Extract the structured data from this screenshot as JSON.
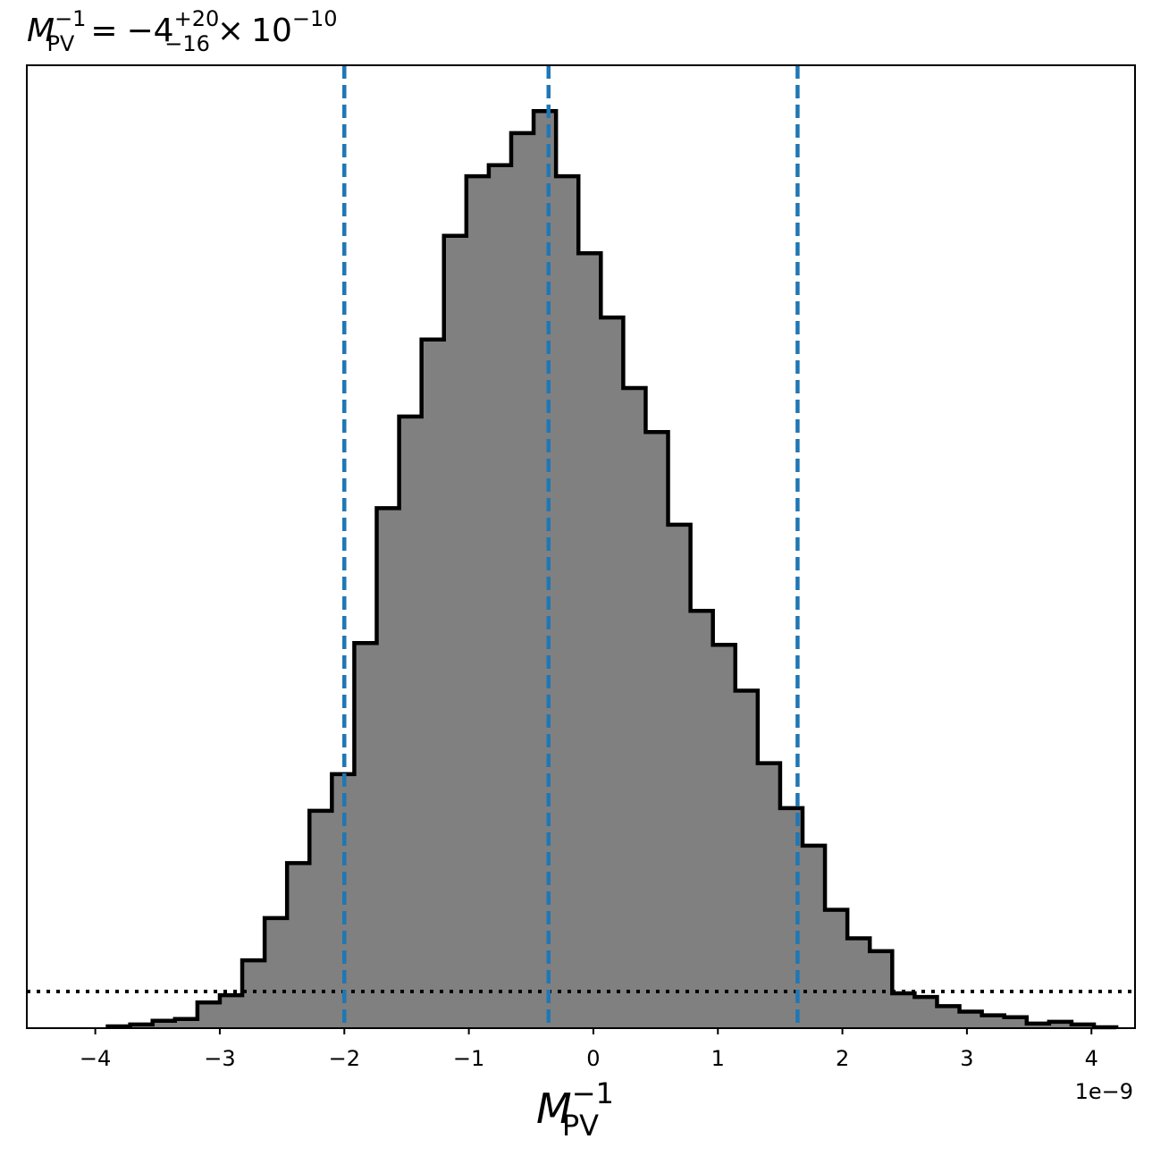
{
  "chart_data": {
    "type": "histogram",
    "title": {
      "symbol": "M",
      "subscript": "PV",
      "superscript": "−1",
      "equals": "=",
      "value": "−4",
      "upper_error": "+20",
      "lower_error": "−16",
      "times": "×",
      "scale_base": "10",
      "scale_exponent": "−10"
    },
    "xlabel": {
      "symbol": "M",
      "subscript": "PV",
      "superscript": "−1"
    },
    "ylabel": "",
    "axis_offset_label": "1e−9",
    "x_scale_exponent": -9,
    "xlim": [
      -4.55,
      4.35
    ],
    "ylim": [
      0,
      1.05
    ],
    "y_ticks_visible": false,
    "grid": false,
    "x_ticks": [
      {
        "value": -4,
        "label": "−4"
      },
      {
        "value": -3,
        "label": "−3"
      },
      {
        "value": -2,
        "label": "−2"
      },
      {
        "value": -1,
        "label": "−1"
      },
      {
        "value": 0,
        "label": "0"
      },
      {
        "value": 1,
        "label": "1"
      },
      {
        "value": 2,
        "label": "2"
      },
      {
        "value": 3,
        "label": "3"
      },
      {
        "value": 4,
        "label": "4"
      }
    ],
    "bins": [
      {
        "x0": -3.9,
        "x1": -3.72,
        "value": 0.002
      },
      {
        "x0": -3.72,
        "x1": -3.54,
        "value": 0.004
      },
      {
        "x0": -3.54,
        "x1": -3.36,
        "value": 0.008
      },
      {
        "x0": -3.36,
        "x1": -3.18,
        "value": 0.01
      },
      {
        "x0": -3.18,
        "x1": -3.0,
        "value": 0.028
      },
      {
        "x0": -3.0,
        "x1": -2.82,
        "value": 0.036
      },
      {
        "x0": -2.82,
        "x1": -2.64,
        "value": 0.074
      },
      {
        "x0": -2.64,
        "x1": -2.46,
        "value": 0.12
      },
      {
        "x0": -2.46,
        "x1": -2.28,
        "value": 0.18
      },
      {
        "x0": -2.28,
        "x1": -2.1,
        "value": 0.237
      },
      {
        "x0": -2.1,
        "x1": -1.92,
        "value": 0.277
      },
      {
        "x0": -1.92,
        "x1": -1.74,
        "value": 0.42
      },
      {
        "x0": -1.74,
        "x1": -1.56,
        "value": 0.567
      },
      {
        "x0": -1.56,
        "x1": -1.38,
        "value": 0.667
      },
      {
        "x0": -1.38,
        "x1": -1.2,
        "value": 0.751
      },
      {
        "x0": -1.2,
        "x1": -1.02,
        "value": 0.864
      },
      {
        "x0": -1.02,
        "x1": -0.84,
        "value": 0.929
      },
      {
        "x0": -0.84,
        "x1": -0.66,
        "value": 0.941
      },
      {
        "x0": -0.66,
        "x1": -0.48,
        "value": 0.976
      },
      {
        "x0": -0.48,
        "x1": -0.3,
        "value": 1.0
      },
      {
        "x0": -0.3,
        "x1": -0.12,
        "value": 0.929
      },
      {
        "x0": -0.12,
        "x1": 0.06,
        "value": 0.845
      },
      {
        "x0": 0.06,
        "x1": 0.24,
        "value": 0.775
      },
      {
        "x0": 0.24,
        "x1": 0.42,
        "value": 0.698
      },
      {
        "x0": 0.42,
        "x1": 0.6,
        "value": 0.65
      },
      {
        "x0": 0.6,
        "x1": 0.78,
        "value": 0.549
      },
      {
        "x0": 0.78,
        "x1": 0.96,
        "value": 0.455
      },
      {
        "x0": 0.96,
        "x1": 1.14,
        "value": 0.418
      },
      {
        "x0": 1.14,
        "x1": 1.32,
        "value": 0.368
      },
      {
        "x0": 1.32,
        "x1": 1.5,
        "value": 0.289
      },
      {
        "x0": 1.5,
        "x1": 1.68,
        "value": 0.24
      },
      {
        "x0": 1.68,
        "x1": 1.86,
        "value": 0.199
      },
      {
        "x0": 1.86,
        "x1": 2.04,
        "value": 0.129
      },
      {
        "x0": 2.04,
        "x1": 2.22,
        "value": 0.098
      },
      {
        "x0": 2.22,
        "x1": 2.4,
        "value": 0.084
      },
      {
        "x0": 2.4,
        "x1": 2.58,
        "value": 0.038
      },
      {
        "x0": 2.58,
        "x1": 2.76,
        "value": 0.034
      },
      {
        "x0": 2.76,
        "x1": 2.94,
        "value": 0.024
      },
      {
        "x0": 2.94,
        "x1": 3.12,
        "value": 0.018
      },
      {
        "x0": 3.12,
        "x1": 3.3,
        "value": 0.014
      },
      {
        "x0": 3.3,
        "x1": 3.48,
        "value": 0.012
      },
      {
        "x0": 3.48,
        "x1": 3.66,
        "value": 0.005
      },
      {
        "x0": 3.66,
        "x1": 3.84,
        "value": 0.007
      },
      {
        "x0": 3.84,
        "x1": 4.02,
        "value": 0.004
      },
      {
        "x0": 4.02,
        "x1": 4.2,
        "value": 0.001
      }
    ],
    "vertical_lines": [
      {
        "x": -2.0,
        "style": "dashed",
        "color": "#1f77b4"
      },
      {
        "x": -0.36,
        "style": "dashed",
        "color": "#1f77b4"
      },
      {
        "x": 1.64,
        "style": "dashed",
        "color": "#1f77b4"
      }
    ],
    "horizontal_line": {
      "y": 0.04,
      "style": "dotted",
      "color": "#000000"
    },
    "colors": {
      "fill": "#808080",
      "edge": "#000000",
      "markers": "#1f77b4"
    }
  }
}
